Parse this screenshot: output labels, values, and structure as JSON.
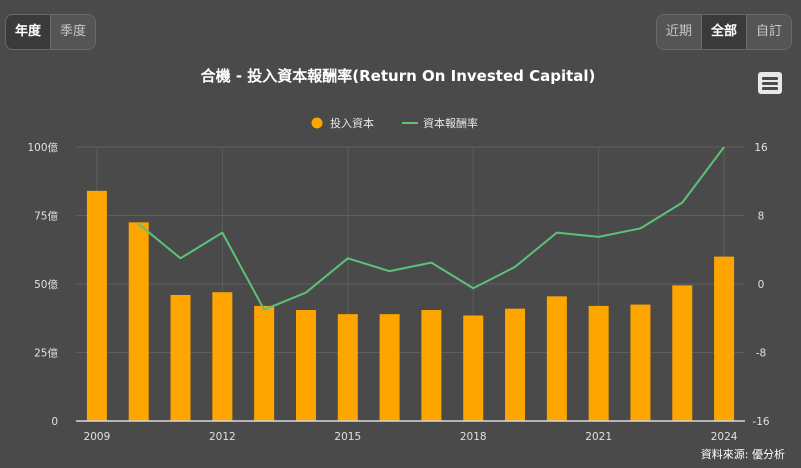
{
  "period_tabs": [
    {
      "label": "年度",
      "active": true
    },
    {
      "label": "季度",
      "active": false
    }
  ],
  "range_tabs": [
    {
      "label": "近期",
      "active": false
    },
    {
      "label": "全部",
      "active": true
    },
    {
      "label": "自訂",
      "active": false
    }
  ],
  "menu_icon": "hamburger-menu-icon",
  "source": "資料來源: 優分析",
  "colors": {
    "bar": "#FFA500",
    "line": "#5CC27A",
    "background": "#4a4a4a",
    "grid": "#5e5e5e"
  },
  "chart_data": {
    "type": "bar+line",
    "title": "合機 - 投入資本報酬率(Return On Invested Capital)",
    "legend": [
      "投入資本",
      "資本報酬率"
    ],
    "legend_position": "top-center",
    "x": [
      2009,
      2010,
      2011,
      2012,
      2013,
      2014,
      2015,
      2016,
      2017,
      2018,
      2019,
      2020,
      2021,
      2022,
      2023,
      2024
    ],
    "x_tick_labels": [
      "2009",
      "2012",
      "2015",
      "2018",
      "2021",
      "2024"
    ],
    "series": [
      {
        "name": "投入資本",
        "type": "bar",
        "axis": "left",
        "values": [
          84,
          72.5,
          46,
          47,
          42,
          40.5,
          39,
          39,
          40.5,
          38.5,
          41,
          45.5,
          42,
          42.5,
          49.5,
          60
        ]
      },
      {
        "name": "資本報酬率",
        "type": "line",
        "axis": "right",
        "values": [
          null,
          7,
          3,
          6,
          -3,
          -1,
          3,
          1.5,
          2.5,
          -0.5,
          2,
          6,
          5.5,
          6.5,
          9.5,
          16
        ]
      }
    ],
    "y_left": {
      "ticks": [
        "0",
        "25億",
        "50億",
        "75億",
        "100億"
      ],
      "range": [
        0,
        100
      ]
    },
    "y_right": {
      "ticks": [
        "-16",
        "-8",
        "0",
        "8",
        "16"
      ],
      "range": [
        -16,
        16
      ]
    },
    "grid": true
  }
}
